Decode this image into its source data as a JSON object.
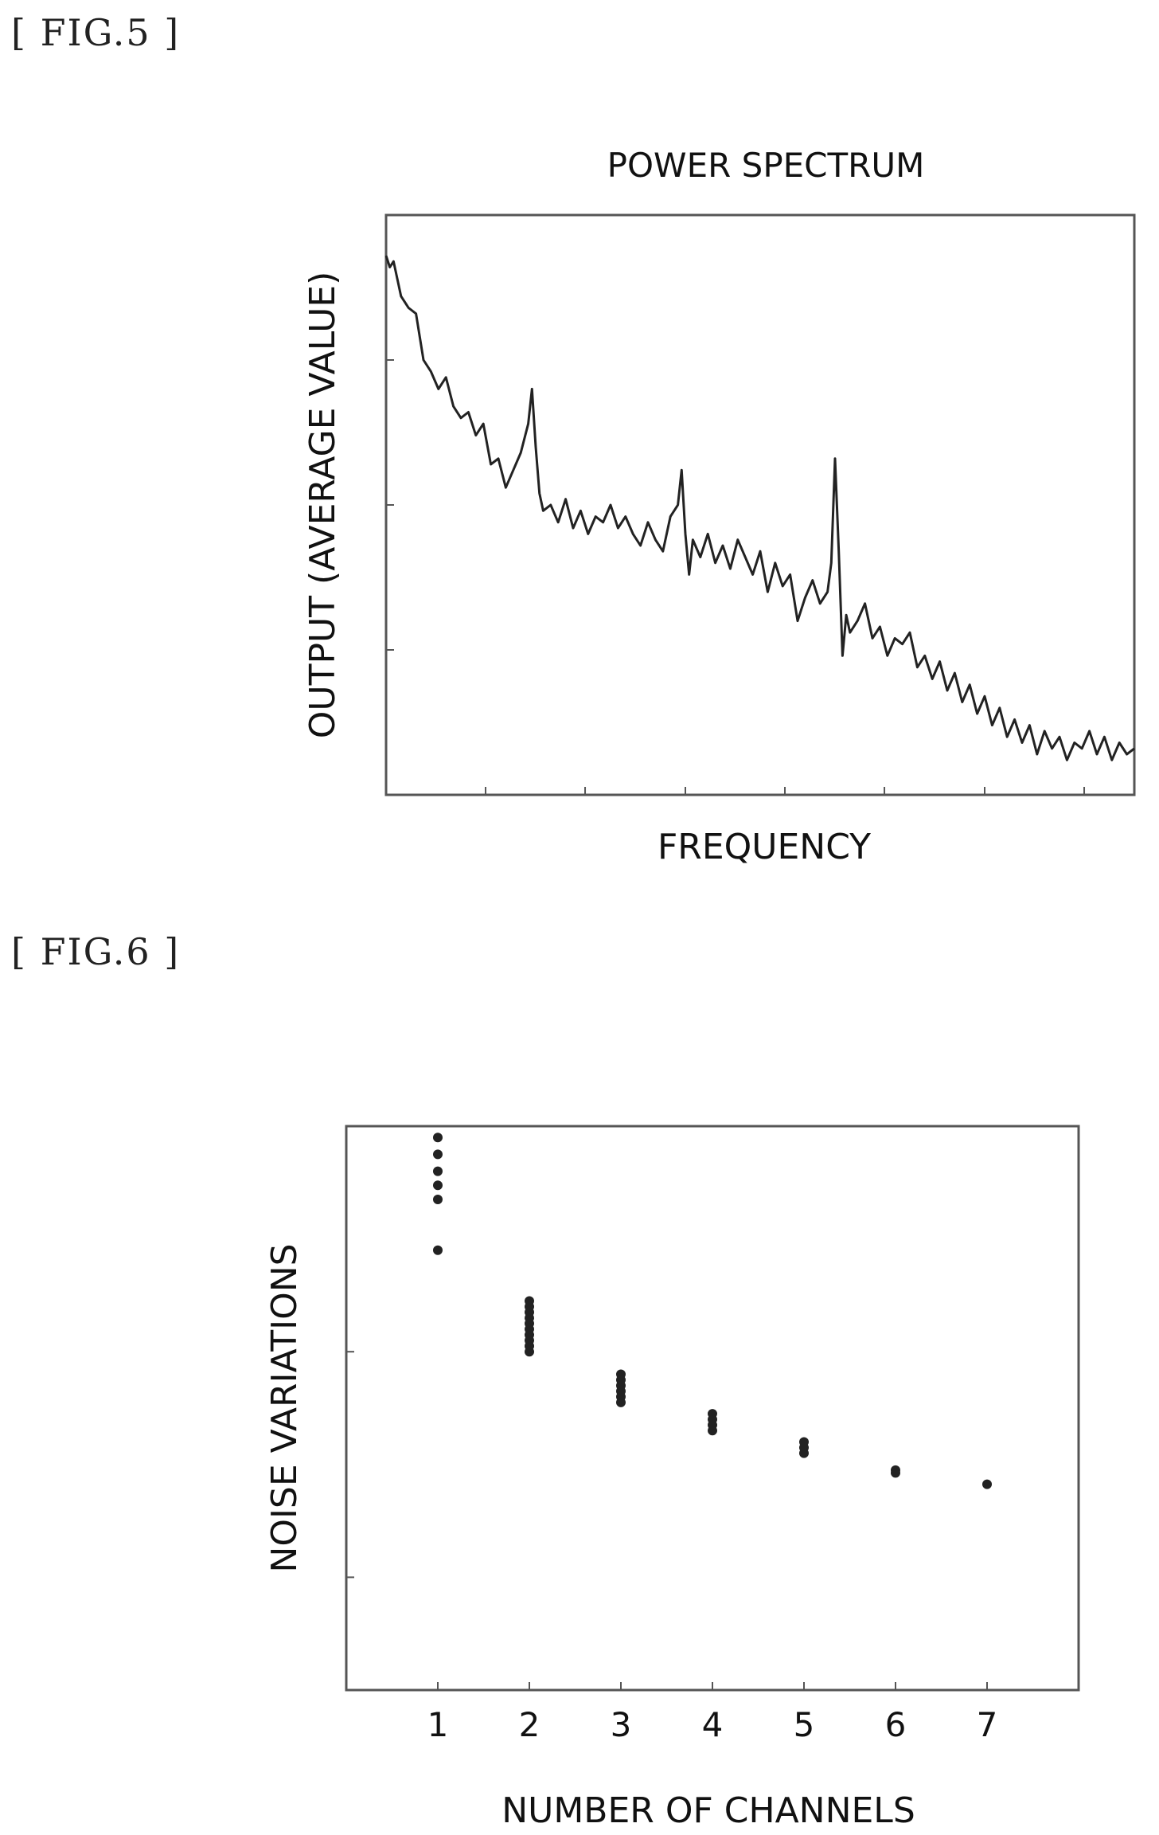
{
  "figures": {
    "fig5_label": "[ FIG.5 ]",
    "fig6_label": "[ FIG.6 ]"
  },
  "chart_data": [
    {
      "type": "line",
      "title": "POWER SPECTRUM",
      "xlabel": "FREQUENCY",
      "ylabel": "OUTPUT (AVERAGE VALUE)",
      "x_tick_labels": [],
      "y_tick_labels": [],
      "xlim": [
        0,
        1
      ],
      "ylim": [
        0,
        1
      ],
      "grid": false,
      "legend": "none",
      "series": [
        {
          "x": [
            0.0,
            0.005,
            0.01,
            0.015,
            0.02,
            0.03,
            0.04,
            0.05,
            0.06,
            0.07,
            0.08,
            0.09,
            0.1,
            0.11,
            0.12,
            0.13,
            0.14,
            0.15,
            0.16,
            0.17,
            0.18,
            0.19,
            0.195,
            0.2,
            0.205,
            0.21,
            0.22,
            0.23,
            0.24,
            0.25,
            0.26,
            0.27,
            0.28,
            0.29,
            0.3,
            0.31,
            0.32,
            0.33,
            0.34,
            0.35,
            0.36,
            0.37,
            0.38,
            0.39,
            0.395,
            0.4,
            0.405,
            0.41,
            0.42,
            0.43,
            0.44,
            0.45,
            0.46,
            0.47,
            0.48,
            0.49,
            0.5,
            0.51,
            0.52,
            0.53,
            0.54,
            0.55,
            0.56,
            0.57,
            0.58,
            0.59,
            0.595,
            0.6,
            0.605,
            0.61,
            0.615,
            0.62,
            0.63,
            0.64,
            0.65,
            0.66,
            0.67,
            0.68,
            0.69,
            0.7,
            0.71,
            0.72,
            0.73,
            0.74,
            0.75,
            0.76,
            0.77,
            0.78,
            0.79,
            0.8,
            0.81,
            0.82,
            0.83,
            0.84,
            0.85,
            0.86,
            0.87,
            0.88,
            0.89,
            0.9,
            0.91,
            0.92,
            0.93,
            0.94,
            0.95,
            0.96,
            0.97,
            0.98,
            0.99,
            1.0
          ],
          "y": [
            0.93,
            0.91,
            0.92,
            0.89,
            0.86,
            0.84,
            0.83,
            0.75,
            0.73,
            0.7,
            0.72,
            0.67,
            0.65,
            0.66,
            0.62,
            0.64,
            0.57,
            0.58,
            0.53,
            0.56,
            0.59,
            0.64,
            0.7,
            0.6,
            0.52,
            0.49,
            0.5,
            0.47,
            0.51,
            0.46,
            0.49,
            0.45,
            0.48,
            0.47,
            0.5,
            0.46,
            0.48,
            0.45,
            0.43,
            0.47,
            0.44,
            0.42,
            0.48,
            0.5,
            0.56,
            0.45,
            0.38,
            0.44,
            0.41,
            0.45,
            0.4,
            0.43,
            0.39,
            0.44,
            0.41,
            0.38,
            0.42,
            0.35,
            0.4,
            0.36,
            0.38,
            0.3,
            0.34,
            0.37,
            0.33,
            0.35,
            0.4,
            0.58,
            0.42,
            0.24,
            0.31,
            0.28,
            0.3,
            0.33,
            0.27,
            0.29,
            0.24,
            0.27,
            0.26,
            0.28,
            0.22,
            0.24,
            0.2,
            0.23,
            0.18,
            0.21,
            0.16,
            0.19,
            0.14,
            0.17,
            0.12,
            0.15,
            0.1,
            0.13,
            0.09,
            0.12,
            0.07,
            0.11,
            0.08,
            0.1,
            0.06,
            0.09,
            0.08,
            0.11,
            0.07,
            0.1,
            0.06,
            0.09,
            0.07,
            0.08
          ]
        }
      ]
    },
    {
      "type": "scatter",
      "title": "",
      "xlabel": "NUMBER OF CHANNELS",
      "ylabel": "NOISE VARIATIONS",
      "x_tick_labels": [
        "1",
        "2",
        "3",
        "4",
        "5",
        "6",
        "7"
      ],
      "xlim": [
        0.0,
        8.0
      ],
      "ylim": [
        0,
        1
      ],
      "grid": false,
      "legend": "none",
      "series": [
        {
          "points": [
            {
              "x": 1,
              "y": 0.98
            },
            {
              "x": 1,
              "y": 0.95
            },
            {
              "x": 1,
              "y": 0.92
            },
            {
              "x": 1,
              "y": 0.895
            },
            {
              "x": 1,
              "y": 0.87
            },
            {
              "x": 1,
              "y": 0.78
            },
            {
              "x": 2,
              "y": 0.69
            },
            {
              "x": 2,
              "y": 0.68
            },
            {
              "x": 2,
              "y": 0.67
            },
            {
              "x": 2,
              "y": 0.66
            },
            {
              "x": 2,
              "y": 0.65
            },
            {
              "x": 2,
              "y": 0.64
            },
            {
              "x": 2,
              "y": 0.63
            },
            {
              "x": 2,
              "y": 0.62
            },
            {
              "x": 2,
              "y": 0.61
            },
            {
              "x": 2,
              "y": 0.6
            },
            {
              "x": 3,
              "y": 0.56
            },
            {
              "x": 3,
              "y": 0.55
            },
            {
              "x": 3,
              "y": 0.54
            },
            {
              "x": 3,
              "y": 0.53
            },
            {
              "x": 3,
              "y": 0.52
            },
            {
              "x": 3,
              "y": 0.51
            },
            {
              "x": 4,
              "y": 0.49
            },
            {
              "x": 4,
              "y": 0.48
            },
            {
              "x": 4,
              "y": 0.47
            },
            {
              "x": 4,
              "y": 0.46
            },
            {
              "x": 5,
              "y": 0.44
            },
            {
              "x": 5,
              "y": 0.43
            },
            {
              "x": 5,
              "y": 0.42
            },
            {
              "x": 6,
              "y": 0.39
            },
            {
              "x": 6,
              "y": 0.385
            },
            {
              "x": 7,
              "y": 0.365
            }
          ]
        }
      ]
    }
  ]
}
